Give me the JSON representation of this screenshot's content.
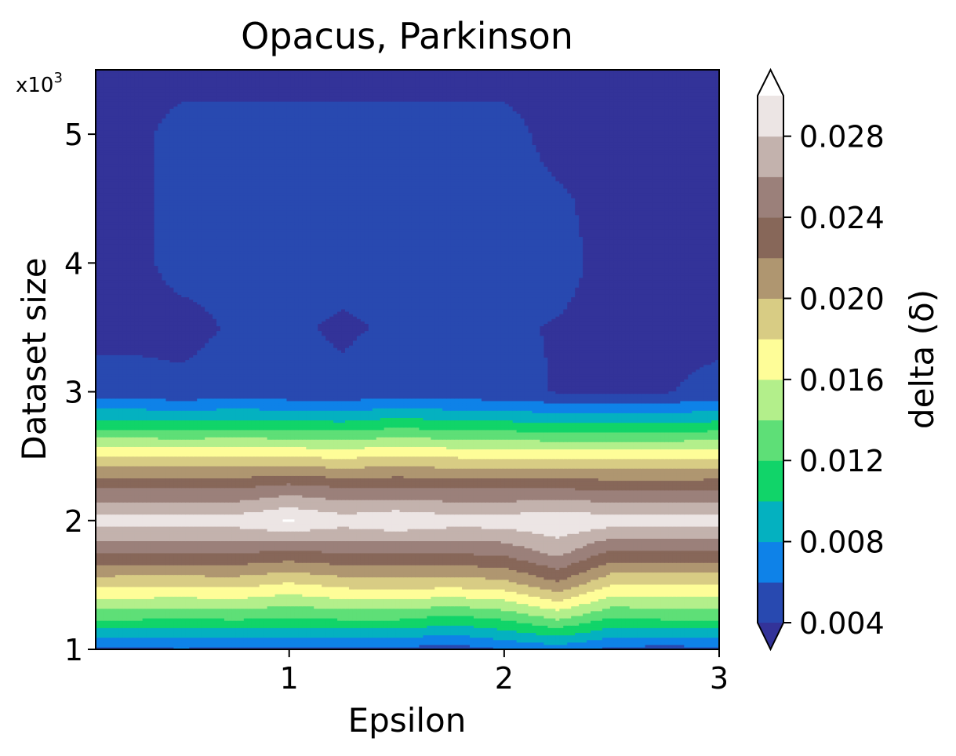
{
  "chart_data": {
    "type": "heatmap",
    "title": "Opacus, Parkinson",
    "xlabel": "Epsilon",
    "ylabel": "Dataset size",
    "y_scale_label": "x10",
    "y_scale_exponent": "3",
    "colorbar_label": "delta (δ)",
    "xlim": [
      0.1,
      3.0
    ],
    "ylim": [
      1,
      5.5
    ],
    "x_ticks": [
      1,
      2,
      3
    ],
    "x_tick_labels": [
      "1",
      "2",
      "3"
    ],
    "y_ticks": [
      1,
      2,
      3,
      4,
      5
    ],
    "y_tick_labels": [
      "1",
      "2",
      "3",
      "4",
      "5"
    ],
    "x": [
      0.1,
      0.25,
      0.5,
      0.75,
      1.0,
      1.25,
      1.5,
      1.75,
      2.0,
      2.25,
      2.5,
      2.75,
      3.0
    ],
    "y": [
      1.0,
      1.25,
      1.5,
      1.75,
      2.0,
      2.25,
      2.5,
      2.75,
      3.0,
      3.5,
      4.0,
      4.5,
      5.0,
      5.5
    ],
    "z": [
      [
        0.0055,
        0.0055,
        0.0058,
        0.0055,
        0.0055,
        0.0055,
        0.0055,
        0.0048,
        0.006,
        0.0068,
        0.0055,
        0.005,
        0.0055
      ],
      [
        0.0125,
        0.0125,
        0.0122,
        0.0125,
        0.012,
        0.0125,
        0.0125,
        0.0115,
        0.0125,
        0.0145,
        0.012,
        0.0125,
        0.0125
      ],
      [
        0.0185,
        0.0183,
        0.0183,
        0.0185,
        0.0175,
        0.0185,
        0.0188,
        0.0185,
        0.019,
        0.0215,
        0.018,
        0.018,
        0.018
      ],
      [
        0.024,
        0.024,
        0.024,
        0.024,
        0.0235,
        0.024,
        0.024,
        0.024,
        0.0245,
        0.0265,
        0.0235,
        0.0235,
        0.0235
      ],
      [
        0.029,
        0.029,
        0.029,
        0.029,
        0.0302,
        0.029,
        0.0298,
        0.029,
        0.029,
        0.0298,
        0.029,
        0.029,
        0.029
      ],
      [
        0.024,
        0.024,
        0.024,
        0.024,
        0.025,
        0.0242,
        0.0242,
        0.024,
        0.024,
        0.024,
        0.0238,
        0.0238,
        0.0238
      ],
      [
        0.018,
        0.018,
        0.018,
        0.018,
        0.018,
        0.0176,
        0.0182,
        0.0178,
        0.0176,
        0.0174,
        0.0174,
        0.0174,
        0.0176
      ],
      [
        0.011,
        0.011,
        0.0108,
        0.011,
        0.0108,
        0.0105,
        0.0112,
        0.0108,
        0.0106,
        0.0102,
        0.0102,
        0.0102,
        0.0106
      ],
      [
        0.0047,
        0.0047,
        0.0044,
        0.0047,
        0.0045,
        0.0043,
        0.005,
        0.0046,
        0.0045,
        0.0039,
        0.0039,
        0.0039,
        0.0045
      ],
      [
        0.0035,
        0.0035,
        0.0035,
        0.0042,
        0.0042,
        0.0038,
        0.0042,
        0.0042,
        0.0042,
        0.0039,
        0.0035,
        0.0035,
        0.0035
      ],
      [
        0.0035,
        0.0035,
        0.0045,
        0.0045,
        0.0045,
        0.0045,
        0.0045,
        0.0045,
        0.0045,
        0.0045,
        0.0035,
        0.0035,
        0.0035
      ],
      [
        0.0035,
        0.0035,
        0.0045,
        0.0045,
        0.0045,
        0.0044,
        0.0045,
        0.0045,
        0.0045,
        0.0042,
        0.0035,
        0.0035,
        0.0035
      ],
      [
        0.0035,
        0.0035,
        0.0045,
        0.0045,
        0.0045,
        0.0045,
        0.0045,
        0.0045,
        0.0045,
        0.0035,
        0.0035,
        0.0035,
        0.0035
      ],
      [
        0.0035,
        0.0035,
        0.0035,
        0.0035,
        0.0035,
        0.0035,
        0.0035,
        0.0035,
        0.0035,
        0.0035,
        0.0035,
        0.0035,
        0.0035
      ]
    ],
    "colorbar": {
      "levels": [
        0.004,
        0.006,
        0.008,
        0.01,
        0.012,
        0.014,
        0.016,
        0.018,
        0.02,
        0.022,
        0.024,
        0.026,
        0.028,
        0.03
      ],
      "colors": [
        "#2849b0",
        "#0e82e8",
        "#04b1c0",
        "#11d469",
        "#5edf77",
        "#b3ef8b",
        "#fefd98",
        "#d8cc84",
        "#af9670",
        "#876759",
        "#9b807a",
        "#c3b2ad",
        "#ece5e4"
      ],
      "under_color": "#333399",
      "over_color": "#ffffff",
      "extend": "both",
      "ticks": [
        0.004,
        0.008,
        0.012,
        0.016,
        0.02,
        0.024,
        0.028
      ],
      "tick_labels": [
        "0.004",
        "0.008",
        "0.012",
        "0.016",
        "0.020",
        "0.024",
        "0.028"
      ]
    }
  }
}
